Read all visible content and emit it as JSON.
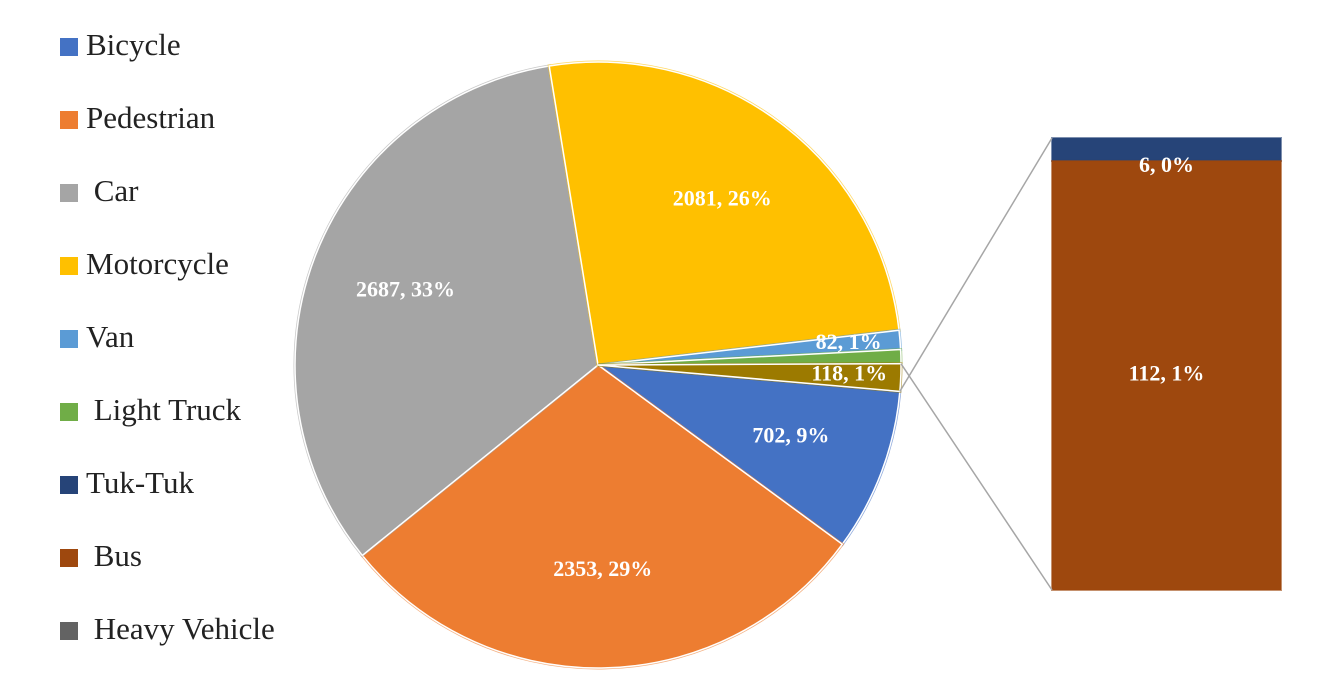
{
  "chart_data": {
    "type": "pie-of-bar",
    "categories": [
      "Bicycle",
      "Pedestrian",
      " Car",
      "Motorcycle",
      "Van",
      " Light Truck",
      "Tuk-Tuk",
      " Bus",
      " Heavy Vehicle"
    ],
    "values": [
      702,
      2353,
      2687,
      2081,
      82,
      60,
      6,
      112,
      0
    ],
    "value_labels": [
      "702, 9%",
      "2353, 29%",
      "2687, 33%",
      "2081, 26%",
      "82, 1%",
      null,
      "6, 0%",
      "112, 1%",
      null
    ],
    "colors": [
      "#4472c4",
      "#ed7d31",
      "#a5a5a5",
      "#ffc000",
      "#5b9bd5",
      "#70ad47",
      "#264478",
      "#9e480e",
      "#636363"
    ],
    "split_last": 3,
    "other": {
      "value": 118,
      "label": "118, 1%",
      "color": "#9c7a00"
    },
    "legend": "left"
  }
}
